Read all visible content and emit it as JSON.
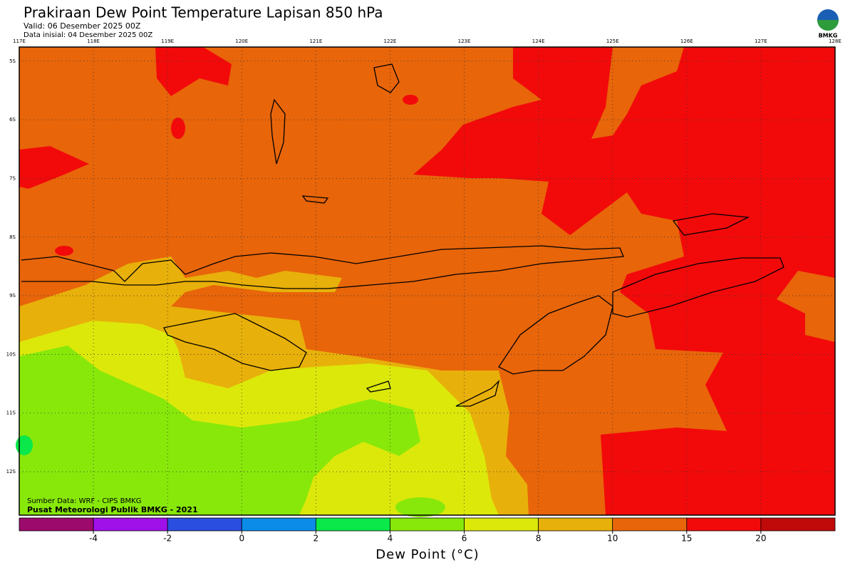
{
  "header": {
    "title": "Prakiraan Dew Point Temperature Lapisan 850 hPa",
    "valid": "Valid: 06 Desember 2025 00Z",
    "initial": "Data inisial: 04 Desember 2025 00Z",
    "logo": "BMKG"
  },
  "map": {
    "type": "map",
    "xlim": [
      117,
      128
    ],
    "ylim": [
      -12.74,
      -4.76
    ],
    "grid": true,
    "xticks": [
      {
        "value": 117,
        "label": "117E"
      },
      {
        "value": 118,
        "label": "118E"
      },
      {
        "value": 119,
        "label": "119E"
      },
      {
        "value": 120,
        "label": "120E"
      },
      {
        "value": 121,
        "label": "121E"
      },
      {
        "value": 122,
        "label": "122E"
      },
      {
        "value": 123,
        "label": "123E"
      },
      {
        "value": 124,
        "label": "124E"
      },
      {
        "value": 125,
        "label": "125E"
      },
      {
        "value": 126,
        "label": "126E"
      },
      {
        "value": 127,
        "label": "127E"
      },
      {
        "value": 128,
        "label": "128E"
      }
    ],
    "yticks": [
      {
        "value": -5,
        "label": "5S"
      },
      {
        "value": -6,
        "label": "6S"
      },
      {
        "value": -7,
        "label": "7S"
      },
      {
        "value": -8,
        "label": "8S"
      },
      {
        "value": -9,
        "label": "9S"
      },
      {
        "value": -10,
        "label": "10S"
      },
      {
        "value": -11,
        "label": "11S"
      },
      {
        "value": -12,
        "label": "12S"
      }
    ]
  },
  "colorbar": {
    "title": "Dew Point (°C)",
    "ticks": [
      -4,
      -2,
      0,
      2,
      4,
      6,
      8,
      10,
      15,
      20
    ],
    "colors": [
      "#9c0a6c",
      "#a010e8",
      "#2a4ee0",
      "#0a8ce8",
      "#0ae84a",
      "#88e80a",
      "#dce80a",
      "#e8b00a",
      "#e8650a",
      "#f20a0a",
      "#c00a0a"
    ]
  },
  "credits": [
    "Sumber Data: WRF - CIPS BMKG",
    "Pusat Meteorologi Publik BMKG - 2021"
  ]
}
